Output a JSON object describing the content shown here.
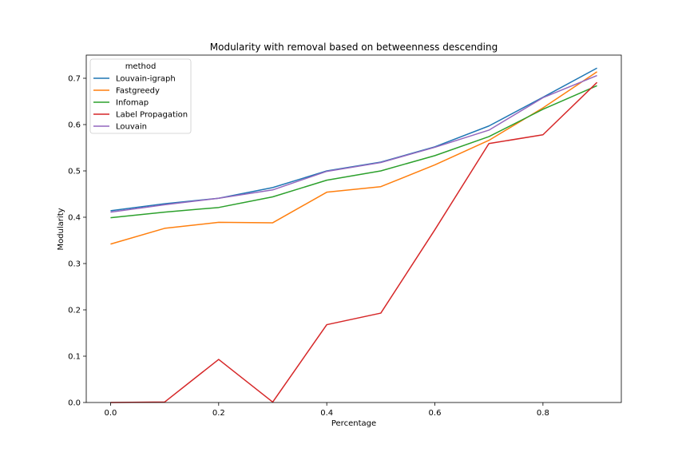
{
  "chart_data": {
    "type": "line",
    "title": "Modularity with removal based on betweenness descending",
    "xlabel": "Percentage",
    "ylabel": "Modularity",
    "xlim": [
      -0.045,
      0.945
    ],
    "ylim": [
      0.0,
      0.75
    ],
    "xticks": [
      0.0,
      0.2,
      0.4,
      0.6,
      0.8
    ],
    "xtick_labels": [
      "0.0",
      "0.2",
      "0.4",
      "0.6",
      "0.8"
    ],
    "yticks": [
      0.0,
      0.1,
      0.2,
      0.3,
      0.4,
      0.5,
      0.6,
      0.7
    ],
    "ytick_labels": [
      "0.0",
      "0.1",
      "0.2",
      "0.3",
      "0.4",
      "0.5",
      "0.6",
      "0.7"
    ],
    "grid": false,
    "legend": {
      "title": "method",
      "placement": "top-left"
    },
    "x": [
      0.0,
      0.1,
      0.2,
      0.3,
      0.4,
      0.5,
      0.6,
      0.7,
      0.8,
      0.9
    ],
    "series": [
      {
        "name": "Louvain-igraph",
        "color": "#1f77b4",
        "values": [
          0.414,
          0.429,
          0.441,
          0.464,
          0.5,
          0.519,
          0.552,
          0.597,
          0.659,
          0.722
        ]
      },
      {
        "name": "Fastgreedy",
        "color": "#ff7f0e",
        "values": [
          0.342,
          0.376,
          0.389,
          0.388,
          0.454,
          0.466,
          0.513,
          0.566,
          0.636,
          0.714
        ]
      },
      {
        "name": "Infomap",
        "color": "#2ca02c",
        "values": [
          0.399,
          0.411,
          0.421,
          0.444,
          0.48,
          0.5,
          0.533,
          0.574,
          0.633,
          0.684
        ]
      },
      {
        "name": "Label Propagation",
        "color": "#d62728",
        "values": [
          0.0,
          0.001,
          0.093,
          0.001,
          0.168,
          0.193,
          0.373,
          0.559,
          0.578,
          0.691
        ]
      },
      {
        "name": "Louvain",
        "color": "#9467bd",
        "values": [
          0.411,
          0.427,
          0.441,
          0.459,
          0.499,
          0.518,
          0.551,
          0.588,
          0.658,
          0.706
        ]
      }
    ]
  }
}
